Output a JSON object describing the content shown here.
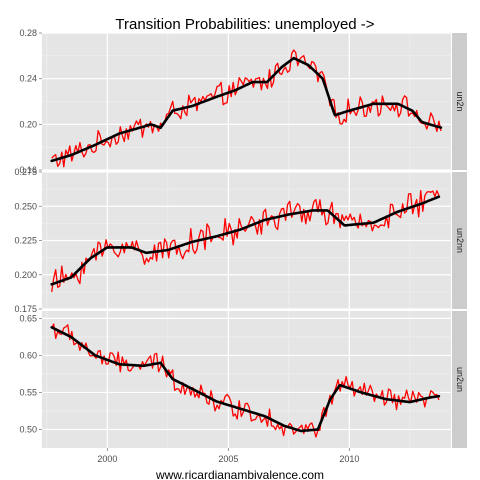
{
  "chart_data": {
    "type": "line",
    "title": "Transition Probabilities: unemployed ->",
    "caption": "www.ricardianambivalence.com",
    "xlabel": "",
    "ylabel": "",
    "x_ticks": [
      2000,
      2005,
      2010
    ],
    "xlim": [
      1997.3,
      2014.2
    ],
    "grid": true,
    "series_styles": {
      "raw": {
        "color": "#ff0000"
      },
      "smoothed": {
        "color": "#000000"
      }
    },
    "panels": [
      {
        "strip_label": "un2n",
        "ylim": [
          0.16,
          0.28
        ],
        "y_ticks": [
          0.16,
          0.2,
          0.24,
          0.28
        ],
        "y_tick_labels": [
          "0.16",
          "0.20",
          "0.24",
          "0.28"
        ],
        "anchors": [
          [
            1997.7,
            0.168
          ],
          [
            1998.5,
            0.173
          ],
          [
            1999.5,
            0.182
          ],
          [
            2000.5,
            0.192
          ],
          [
            2001.5,
            0.198
          ],
          [
            2001.8,
            0.2
          ],
          [
            2002.2,
            0.197
          ],
          [
            2002.7,
            0.212
          ],
          [
            2003.5,
            0.216
          ],
          [
            2004.5,
            0.224
          ],
          [
            2005.3,
            0.23
          ],
          [
            2006.0,
            0.237
          ],
          [
            2006.6,
            0.237
          ],
          [
            2007.2,
            0.25
          ],
          [
            2007.7,
            0.258
          ],
          [
            2008.3,
            0.252
          ],
          [
            2008.9,
            0.24
          ],
          [
            2009.4,
            0.208
          ],
          [
            2010.0,
            0.212
          ],
          [
            2011.0,
            0.218
          ],
          [
            2012.0,
            0.218
          ],
          [
            2012.6,
            0.212
          ],
          [
            2013.0,
            0.202
          ],
          [
            2013.8,
            0.197
          ]
        ],
        "amp": 0.009
      },
      {
        "strip_label": "un2nn",
        "ylim": [
          0.175,
          0.275
        ],
        "y_ticks": [
          0.175,
          0.2,
          0.225,
          0.25,
          0.275
        ],
        "y_tick_labels": [
          "0.175",
          "0.200",
          "0.225",
          "0.250",
          "0.275"
        ],
        "anchors": [
          [
            1997.7,
            0.193
          ],
          [
            1998.5,
            0.198
          ],
          [
            1999.3,
            0.212
          ],
          [
            2000.0,
            0.22
          ],
          [
            2001.0,
            0.22
          ],
          [
            2001.6,
            0.216
          ],
          [
            2002.5,
            0.218
          ],
          [
            2003.5,
            0.224
          ],
          [
            2004.5,
            0.228
          ],
          [
            2005.5,
            0.233
          ],
          [
            2006.5,
            0.24
          ],
          [
            2007.5,
            0.244
          ],
          [
            2008.5,
            0.247
          ],
          [
            2009.1,
            0.247
          ],
          [
            2009.8,
            0.236
          ],
          [
            2011.0,
            0.238
          ],
          [
            2012.0,
            0.246
          ],
          [
            2013.0,
            0.252
          ],
          [
            2013.7,
            0.257
          ]
        ],
        "amp": 0.009
      },
      {
        "strip_label": "un2un",
        "ylim": [
          0.475,
          0.66
        ],
        "y_ticks": [
          0.5,
          0.55,
          0.6,
          0.65
        ],
        "y_tick_labels": [
          "0.50",
          "0.55",
          "0.60",
          "0.65"
        ],
        "anchors": [
          [
            1997.7,
            0.638
          ],
          [
            1998.5,
            0.625
          ],
          [
            1999.5,
            0.6
          ],
          [
            2000.5,
            0.588
          ],
          [
            2001.5,
            0.586
          ],
          [
            2002.2,
            0.59
          ],
          [
            2002.7,
            0.568
          ],
          [
            2003.5,
            0.555
          ],
          [
            2004.5,
            0.538
          ],
          [
            2005.5,
            0.528
          ],
          [
            2006.5,
            0.518
          ],
          [
            2007.3,
            0.505
          ],
          [
            2008.0,
            0.498
          ],
          [
            2008.7,
            0.5
          ],
          [
            2009.2,
            0.54
          ],
          [
            2009.6,
            0.56
          ],
          [
            2010.5,
            0.55
          ],
          [
            2011.5,
            0.541
          ],
          [
            2012.5,
            0.537
          ],
          [
            2013.3,
            0.543
          ],
          [
            2013.7,
            0.545
          ]
        ],
        "amp": 0.013
      }
    ]
  }
}
